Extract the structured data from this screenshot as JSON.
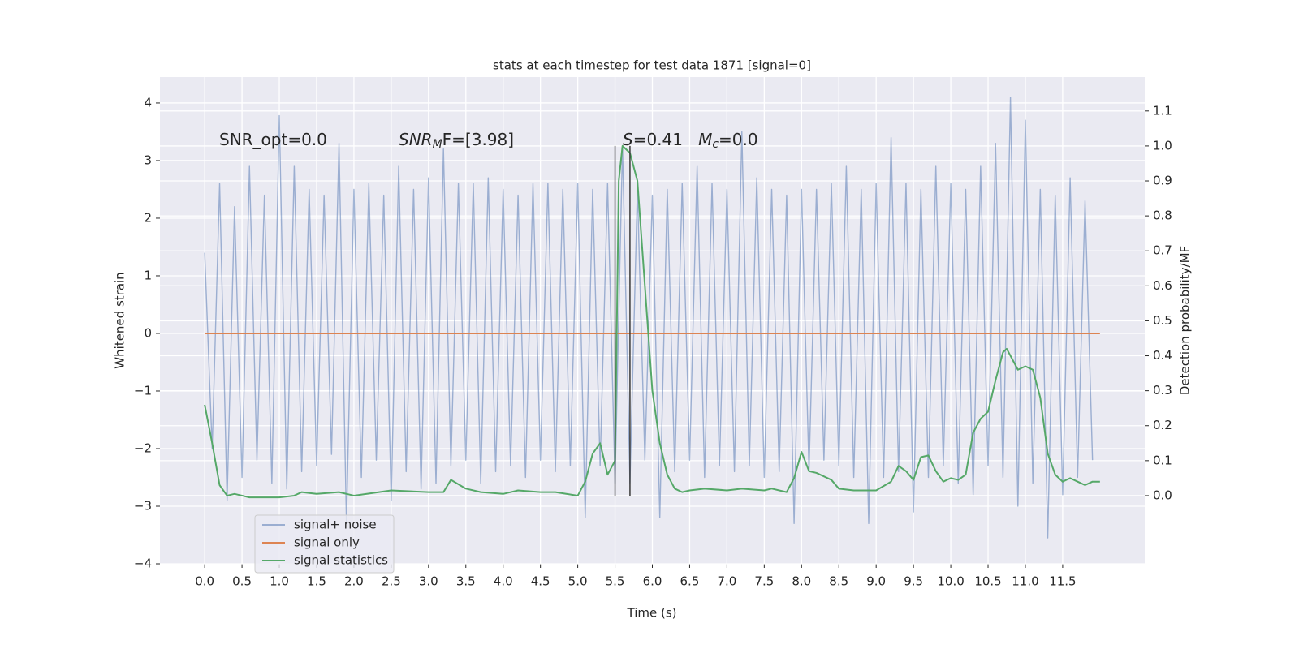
{
  "chart_data": {
    "type": "line",
    "title": "stats at each timestep for test data 1871 [signal=0]",
    "x_label": "Time (s)",
    "y_label": "Whitened strain",
    "y2_label": "Detection probability/MF",
    "grid": true,
    "legend": "lower left",
    "xlim": [
      -0.6,
      12.6
    ],
    "ylim": [
      -4.0,
      4.45
    ],
    "y2lim": [
      -0.195,
      1.197
    ],
    "xticks": [
      {
        "value": 0,
        "label": "0.0"
      },
      {
        "value": 0.5,
        "label": "0.5"
      },
      {
        "value": 1,
        "label": "1.0"
      },
      {
        "value": 1.5,
        "label": "1.5"
      },
      {
        "value": 2,
        "label": "2.0"
      },
      {
        "value": 2.5,
        "label": "2.5"
      },
      {
        "value": 3,
        "label": "3.0"
      },
      {
        "value": 3.5,
        "label": "3.5"
      },
      {
        "value": 4,
        "label": "4.0"
      },
      {
        "value": 4.5,
        "label": "4.5"
      },
      {
        "value": 5,
        "label": "5.0"
      },
      {
        "value": 5.5,
        "label": "5.5"
      },
      {
        "value": 6,
        "label": "6.0"
      },
      {
        "value": 6.5,
        "label": "6.5"
      },
      {
        "value": 7,
        "label": "7.0"
      },
      {
        "value": 7.5,
        "label": "7.5"
      },
      {
        "value": 8,
        "label": "8.0"
      },
      {
        "value": 8.5,
        "label": "8.5"
      },
      {
        "value": 9,
        "label": "9.0"
      },
      {
        "value": 9.5,
        "label": "9.5"
      },
      {
        "value": 10,
        "label": "10.0"
      },
      {
        "value": 10.5,
        "label": "10.5"
      },
      {
        "value": 11,
        "label": "11.0"
      },
      {
        "value": 11.5,
        "label": "11.5"
      }
    ],
    "yticks": [
      {
        "value": -4,
        "label": "−4"
      },
      {
        "value": -3,
        "label": "−3"
      },
      {
        "value": -2,
        "label": "−2"
      },
      {
        "value": -1,
        "label": "−1"
      },
      0,
      1,
      2,
      3,
      4
    ],
    "y2ticks": [
      {
        "value": 0,
        "label": "0.0"
      },
      {
        "value": 0.1,
        "label": "0.1"
      },
      {
        "value": 0.2,
        "label": "0.2"
      },
      {
        "value": 0.3,
        "label": "0.3"
      },
      {
        "value": 0.4,
        "label": "0.4"
      },
      {
        "value": 0.5,
        "label": "0.5"
      },
      {
        "value": 0.6,
        "label": "0.6"
      },
      {
        "value": 0.7,
        "label": "0.7"
      },
      {
        "value": 0.8,
        "label": "0.8"
      },
      {
        "value": 0.9,
        "label": "0.9"
      },
      {
        "value": 1,
        "label": "1.0"
      },
      {
        "value": 1.1,
        "label": "1.1"
      }
    ],
    "series": [
      {
        "name": "signal+ noise",
        "color": "#4c72b0",
        "opacity": 0.5,
        "x": [
          0,
          0.1,
          0.2,
          0.3,
          0.4,
          0.5,
          0.6,
          0.7,
          0.8,
          0.9,
          1,
          1.1,
          1.2,
          1.3,
          1.4,
          1.5,
          1.6,
          1.7,
          1.8,
          1.9,
          2,
          2.1,
          2.2,
          2.3,
          2.4,
          2.5,
          2.6,
          2.7,
          2.8,
          2.9,
          3,
          3.1,
          3.2,
          3.3,
          3.4,
          3.5,
          3.6,
          3.7,
          3.8,
          3.9,
          4,
          4.1,
          4.2,
          4.3,
          4.4,
          4.5,
          4.6,
          4.7,
          4.8,
          4.9,
          5,
          5.1,
          5.2,
          5.3,
          5.4,
          5.5,
          5.6,
          5.7,
          5.8,
          5.9,
          6,
          6.1,
          6.2,
          6.3,
          6.4,
          6.5,
          6.6,
          6.7,
          6.8,
          6.9,
          7,
          7.1,
          7.2,
          7.3,
          7.4,
          7.5,
          7.6,
          7.7,
          7.8,
          7.9,
          8,
          8.1,
          8.2,
          8.3,
          8.4,
          8.5,
          8.6,
          8.7,
          8.8,
          8.9,
          9,
          9.1,
          9.2,
          9.3,
          9.4,
          9.5,
          9.6,
          9.7,
          9.8,
          9.9,
          10,
          10.1,
          10.2,
          10.3,
          10.4,
          10.5,
          10.6,
          10.7,
          10.8,
          10.9,
          11,
          11.1,
          11.2,
          11.3,
          11.4,
          11.5,
          11.6,
          11.7,
          11.8,
          11.9
        ],
        "values": [
          1.4,
          -2.0,
          2.6,
          -2.9,
          2.2,
          -2.5,
          2.9,
          -2.2,
          2.4,
          -2.6,
          3.78,
          -2.7,
          2.9,
          -2.4,
          2.5,
          -2.3,
          2.4,
          -2.1,
          3.3,
          -3.3,
          2.5,
          -2.5,
          2.6,
          -2.2,
          2.4,
          -2.9,
          2.9,
          -2.4,
          2.5,
          -2.7,
          2.7,
          -2.6,
          3.2,
          -2.3,
          2.6,
          -2.2,
          2.6,
          -2.6,
          2.7,
          -2.4,
          2.5,
          -2.3,
          2.4,
          -2.5,
          2.6,
          -2.2,
          2.6,
          -2.4,
          2.5,
          -2.3,
          2.6,
          -3.2,
          2.5,
          -2.3,
          2.6,
          -2.6,
          3.25,
          -2.6,
          2.5,
          -2.2,
          2.4,
          -3.2,
          2.5,
          -2.4,
          2.6,
          -2.2,
          2.9,
          -2.5,
          2.6,
          -2.3,
          2.5,
          -2.4,
          3.5,
          -2.3,
          2.7,
          -2.5,
          2.5,
          -2.4,
          2.4,
          -3.3,
          2.5,
          -2.4,
          2.5,
          -2.2,
          2.6,
          -2.3,
          2.9,
          -2.5,
          2.5,
          -3.3,
          2.6,
          -2.5,
          3.4,
          -2.4,
          2.6,
          -3.1,
          2.5,
          -2.5,
          2.9,
          -2.3,
          2.6,
          -2.6,
          2.5,
          -2.8,
          2.9,
          -2.3,
          3.3,
          -2.5,
          4.1,
          -3.0,
          3.7,
          -2.6,
          2.5,
          -3.55,
          2.4,
          -2.8,
          2.7,
          -2.5,
          2.3,
          -2.2
        ]
      },
      {
        "name": "signal only",
        "color": "#dd8452",
        "x": [
          0,
          12
        ],
        "values": [
          0,
          0
        ]
      },
      {
        "name": "signal statistics",
        "color": "#55a868",
        "axis": "y2",
        "x": [
          0,
          0.1,
          0.2,
          0.3,
          0.4,
          0.5,
          0.6,
          0.8,
          1.0,
          1.2,
          1.3,
          1.5,
          1.8,
          2.0,
          2.5,
          3.0,
          3.2,
          3.3,
          3.5,
          3.7,
          4.0,
          4.2,
          4.5,
          4.7,
          5.0,
          5.1,
          5.2,
          5.3,
          5.4,
          5.5,
          5.55,
          5.6,
          5.7,
          5.8,
          5.9,
          6.0,
          6.1,
          6.2,
          6.3,
          6.4,
          6.5,
          6.7,
          7.0,
          7.2,
          7.5,
          7.6,
          7.8,
          7.9,
          8.0,
          8.1,
          8.2,
          8.4,
          8.5,
          8.7,
          9.0,
          9.2,
          9.3,
          9.4,
          9.5,
          9.6,
          9.7,
          9.8,
          9.9,
          10.0,
          10.1,
          10.2,
          10.3,
          10.4,
          10.5,
          10.6,
          10.7,
          10.75,
          10.9,
          11.0,
          11.1,
          11.2,
          11.3,
          11.4,
          11.5,
          11.6,
          11.7,
          11.8,
          11.9,
          12.0
        ],
        "values": [
          0.26,
          0.15,
          0.03,
          0.0,
          0.005,
          0.0,
          -0.005,
          -0.005,
          -0.005,
          0.0,
          0.01,
          0.005,
          0.01,
          0.0,
          0.015,
          0.01,
          0.01,
          0.045,
          0.02,
          0.01,
          0.005,
          0.015,
          0.01,
          0.01,
          0.0,
          0.04,
          0.12,
          0.15,
          0.06,
          0.1,
          0.9,
          1.0,
          0.98,
          0.9,
          0.6,
          0.3,
          0.15,
          0.06,
          0.02,
          0.01,
          0.015,
          0.02,
          0.015,
          0.02,
          0.015,
          0.02,
          0.01,
          0.05,
          0.125,
          0.07,
          0.065,
          0.045,
          0.02,
          0.015,
          0.015,
          0.04,
          0.085,
          0.07,
          0.045,
          0.11,
          0.115,
          0.07,
          0.04,
          0.05,
          0.045,
          0.06,
          0.18,
          0.22,
          0.24,
          0.33,
          0.41,
          0.42,
          0.36,
          0.37,
          0.36,
          0.28,
          0.12,
          0.06,
          0.04,
          0.05,
          0.04,
          0.03,
          0.04,
          0.04
        ]
      }
    ],
    "vlines": {
      "x": [
        5.5,
        5.7
      ],
      "ymin": 0,
      "ymax": 1,
      "axis": "y2",
      "color": "#3a3a3a"
    },
    "annotations": [
      {
        "parts": [
          {
            "text": "SNR_opt=0.0"
          }
        ]
      },
      {
        "parts": [
          {
            "text": "SNR",
            "style": "italic"
          },
          {
            "text": "M",
            "style": "italic-sub"
          },
          {
            "text": "F=[3.98]"
          }
        ]
      },
      {
        "parts": [
          {
            "text": "S",
            "style": "italic"
          },
          {
            "text": "=0.41   "
          },
          {
            "text": "M",
            "style": "italic"
          },
          {
            "text": "c",
            "style": "italic-sub"
          },
          {
            "text": "=0.0"
          }
        ]
      }
    ]
  }
}
